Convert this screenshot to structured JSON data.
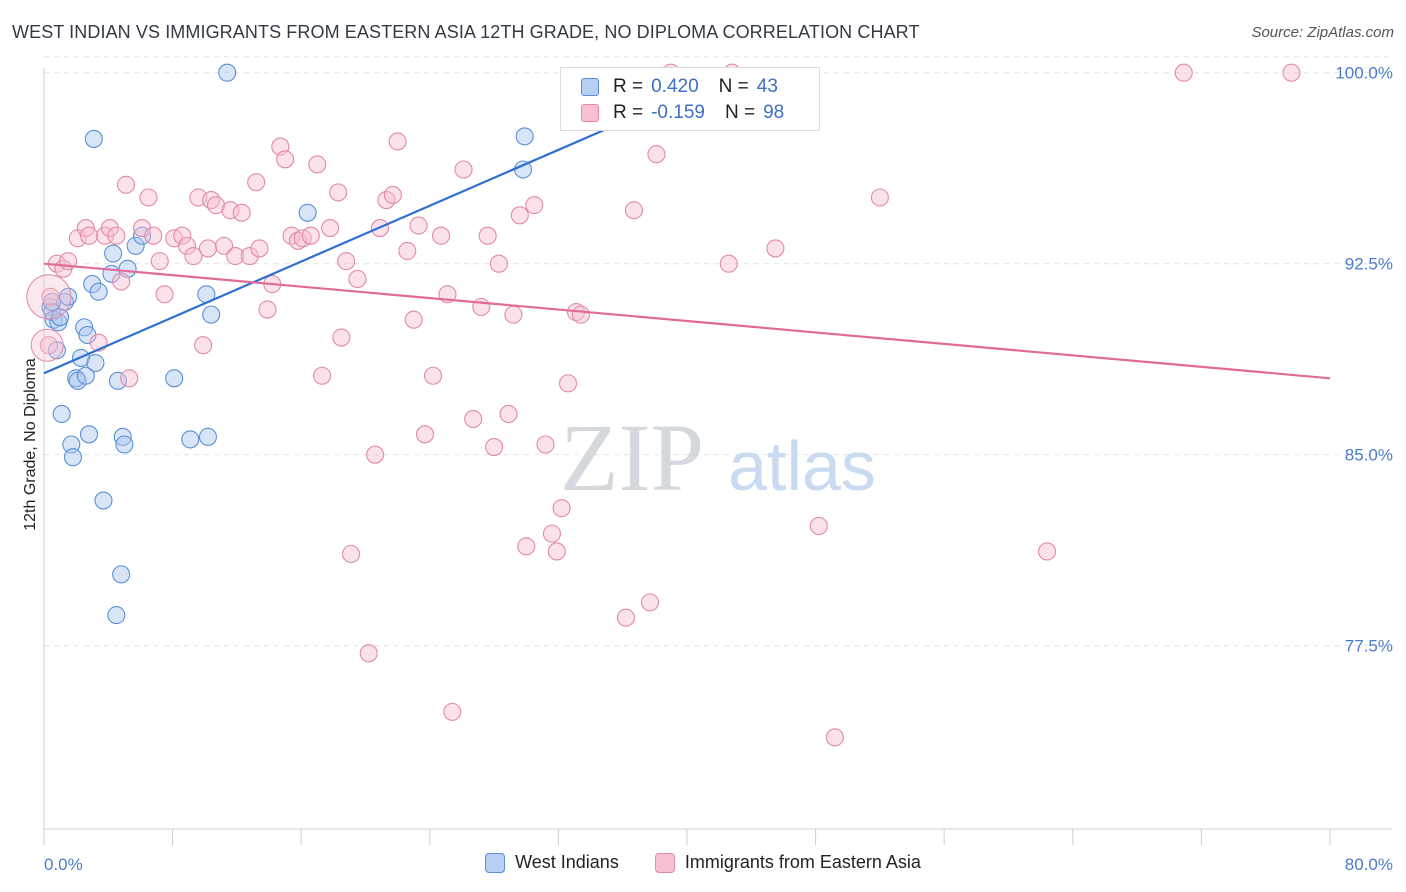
{
  "header": {
    "title": "WEST INDIAN VS IMMIGRANTS FROM EASTERN ASIA 12TH GRADE, NO DIPLOMA CORRELATION CHART",
    "source": "Source: ZipAtlas.com"
  },
  "watermark": {
    "zip": "ZIP",
    "atlas": "atlas"
  },
  "legend": {
    "r_label": "R =",
    "n_label": "N =",
    "rows": [
      {
        "r": "0.420",
        "n": "43",
        "swatch_fill": "#b7cff2",
        "swatch_stroke": "#5b8fd8"
      },
      {
        "r": "-0.159",
        "n": "98",
        "swatch_fill": "#f7c1d2",
        "swatch_stroke": "#e28aa8"
      }
    ]
  },
  "colors": {
    "blue_fill": "#a9c6ee",
    "blue_stroke": "#5b8fd8",
    "blue_line": "#2f6fcf",
    "pink_fill": "#f6bfd0",
    "pink_stroke": "#e28aa8",
    "pink_line": "#e06b98",
    "grid": "#e3e3e3",
    "tick_label": "#4a7cc9"
  },
  "chart_data": {
    "type": "scatter",
    "title": "WEST INDIAN VS IMMIGRANTS FROM EASTERN ASIA 12TH GRADE, NO DIPLOMA CORRELATION CHART",
    "xlabel": "",
    "ylabel": "12th Grade, No Diploma",
    "xlim": [
      0,
      80
    ],
    "ylim": [
      70.3,
      100.5
    ],
    "x_tick_labels": [
      "0.0%",
      "80.0%"
    ],
    "y_ticks": [
      77.5,
      85.0,
      92.5,
      100.0
    ],
    "y_tick_labels": [
      "77.5%",
      "85.0%",
      "92.5%",
      "100.0%"
    ],
    "grid": true,
    "legend_position": "bottom-center",
    "series": [
      {
        "name": "West Indians",
        "r": 0.42,
        "n": 43,
        "trend": {
          "x": [
            0,
            40.5
          ],
          "y": [
            88.2,
            99.3
          ]
        },
        "points": [
          [
            0.4,
            90.8
          ],
          [
            0.5,
            90.6
          ],
          [
            0.6,
            90.3
          ],
          [
            0.8,
            89.1
          ],
          [
            0.9,
            90.2
          ],
          [
            1.0,
            90.4
          ],
          [
            1.1,
            86.6
          ],
          [
            1.3,
            91.0
          ],
          [
            1.5,
            91.2
          ],
          [
            1.7,
            85.4
          ],
          [
            1.8,
            84.9
          ],
          [
            2.0,
            88.0
          ],
          [
            2.1,
            87.9
          ],
          [
            2.3,
            88.8
          ],
          [
            2.5,
            90.0
          ],
          [
            2.6,
            88.1
          ],
          [
            2.7,
            89.7
          ],
          [
            2.8,
            85.8
          ],
          [
            3.0,
            91.7
          ],
          [
            3.1,
            97.4
          ],
          [
            3.2,
            88.6
          ],
          [
            3.4,
            91.4
          ],
          [
            3.7,
            83.2
          ],
          [
            4.2,
            92.1
          ],
          [
            4.3,
            92.9
          ],
          [
            4.5,
            78.7
          ],
          [
            4.6,
            87.9
          ],
          [
            4.8,
            80.3
          ],
          [
            4.9,
            85.7
          ],
          [
            5.0,
            85.4
          ],
          [
            5.2,
            92.3
          ],
          [
            5.7,
            93.2
          ],
          [
            6.1,
            93.6
          ],
          [
            8.1,
            88.0
          ],
          [
            9.1,
            85.6
          ],
          [
            10.1,
            91.3
          ],
          [
            10.2,
            85.7
          ],
          [
            10.4,
            90.5
          ],
          [
            11.4,
            100.0
          ],
          [
            16.4,
            94.5
          ],
          [
            29.9,
            97.5
          ],
          [
            29.8,
            96.2
          ],
          [
            0.5,
            91.0
          ]
        ]
      },
      {
        "name": "Immigrants from Eastern Asia",
        "r": -0.159,
        "n": 98,
        "trend": {
          "x": [
            0,
            80
          ],
          "y": [
            92.5,
            88.0
          ]
        },
        "points": [
          [
            0.3,
            89.3
          ],
          [
            0.4,
            91.2
          ],
          [
            0.8,
            92.5
          ],
          [
            1.2,
            92.3
          ],
          [
            1.5,
            92.6
          ],
          [
            2.1,
            93.5
          ],
          [
            2.6,
            93.9
          ],
          [
            2.8,
            93.6
          ],
          [
            3.4,
            89.4
          ],
          [
            3.8,
            93.6
          ],
          [
            4.1,
            93.9
          ],
          [
            4.5,
            93.6
          ],
          [
            4.8,
            91.8
          ],
          [
            5.1,
            95.6
          ],
          [
            5.3,
            88.0
          ],
          [
            6.1,
            93.9
          ],
          [
            6.5,
            95.1
          ],
          [
            6.8,
            93.6
          ],
          [
            7.2,
            92.6
          ],
          [
            7.5,
            91.3
          ],
          [
            8.1,
            93.5
          ],
          [
            8.6,
            93.6
          ],
          [
            8.9,
            93.2
          ],
          [
            9.3,
            92.8
          ],
          [
            9.6,
            95.1
          ],
          [
            9.9,
            89.3
          ],
          [
            10.2,
            93.1
          ],
          [
            10.4,
            95.0
          ],
          [
            10.7,
            94.8
          ],
          [
            11.2,
            93.2
          ],
          [
            11.6,
            94.6
          ],
          [
            11.9,
            92.8
          ],
          [
            12.3,
            94.5
          ],
          [
            12.8,
            92.8
          ],
          [
            13.2,
            95.7
          ],
          [
            13.4,
            93.1
          ],
          [
            13.9,
            90.7
          ],
          [
            14.2,
            91.7
          ],
          [
            14.7,
            97.1
          ],
          [
            15.0,
            96.6
          ],
          [
            15.4,
            93.6
          ],
          [
            15.8,
            93.4
          ],
          [
            16.1,
            93.5
          ],
          [
            16.6,
            93.6
          ],
          [
            17.0,
            96.4
          ],
          [
            17.3,
            88.1
          ],
          [
            17.8,
            93.9
          ],
          [
            18.3,
            95.3
          ],
          [
            18.5,
            89.6
          ],
          [
            18.8,
            92.6
          ],
          [
            19.1,
            81.1
          ],
          [
            19.5,
            91.9
          ],
          [
            20.2,
            77.2
          ],
          [
            20.6,
            85.0
          ],
          [
            20.9,
            93.9
          ],
          [
            21.3,
            95.0
          ],
          [
            21.7,
            95.2
          ],
          [
            22.0,
            97.3
          ],
          [
            22.6,
            93.0
          ],
          [
            23.0,
            90.3
          ],
          [
            23.3,
            94.0
          ],
          [
            23.7,
            85.8
          ],
          [
            24.2,
            88.1
          ],
          [
            24.7,
            93.6
          ],
          [
            25.1,
            91.3
          ],
          [
            25.4,
            74.9
          ],
          [
            26.1,
            96.2
          ],
          [
            26.7,
            86.4
          ],
          [
            27.2,
            90.8
          ],
          [
            27.6,
            93.6
          ],
          [
            28.0,
            85.3
          ],
          [
            28.3,
            92.5
          ],
          [
            28.9,
            86.6
          ],
          [
            29.2,
            90.5
          ],
          [
            29.6,
            94.4
          ],
          [
            30.0,
            81.4
          ],
          [
            30.5,
            94.8
          ],
          [
            31.2,
            85.4
          ],
          [
            31.6,
            81.9
          ],
          [
            31.9,
            81.2
          ],
          [
            32.2,
            82.9
          ],
          [
            32.6,
            87.8
          ],
          [
            33.1,
            90.6
          ],
          [
            33.4,
            90.5
          ],
          [
            36.2,
            78.6
          ],
          [
            36.7,
            94.6
          ],
          [
            37.7,
            79.2
          ],
          [
            38.1,
            96.8
          ],
          [
            39.0,
            100.0
          ],
          [
            42.8,
            100.0
          ],
          [
            42.6,
            92.5
          ],
          [
            45.5,
            93.1
          ],
          [
            48.2,
            82.2
          ],
          [
            49.2,
            73.9
          ],
          [
            52.0,
            95.1
          ],
          [
            62.4,
            81.2
          ],
          [
            70.9,
            100.0
          ],
          [
            77.6,
            100.0
          ]
        ]
      }
    ]
  }
}
